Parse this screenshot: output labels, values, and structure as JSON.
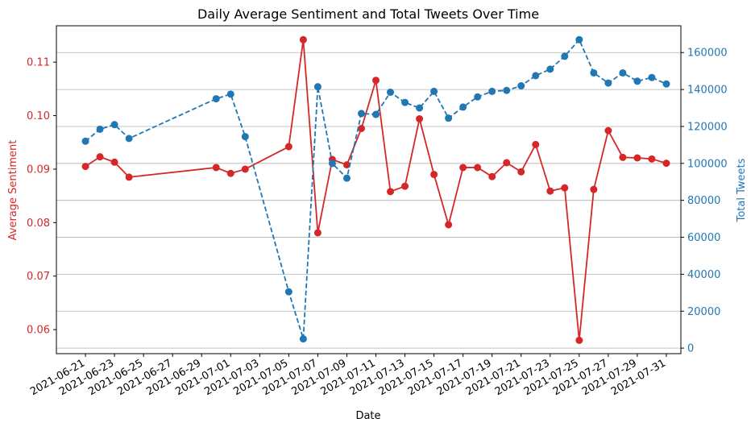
{
  "chart_data": {
    "type": "line",
    "title": "Daily Average Sentiment and Total Tweets Over Time",
    "xlabel": "Date",
    "ylabel_left": "Average Sentiment",
    "ylabel_right": "Total Tweets",
    "colors": {
      "sentiment": "#d62728",
      "tweets": "#1f77b4",
      "grid": "#b0b0b0",
      "axis": "#000000"
    },
    "x_ticks": [
      "2021-06-21",
      "2021-06-23",
      "2021-06-25",
      "2021-06-27",
      "2021-06-29",
      "2021-07-01",
      "2021-07-03",
      "2021-07-05",
      "2021-07-07",
      "2021-07-09",
      "2021-07-11",
      "2021-07-13",
      "2021-07-15",
      "2021-07-17",
      "2021-07-19",
      "2021-07-21",
      "2021-07-23",
      "2021-07-25",
      "2021-07-27",
      "2021-07-29",
      "2021-07-31"
    ],
    "xlim": [
      "2021-06-19",
      "2021-08-01"
    ],
    "y_left_ticks": [
      0.06,
      0.07,
      0.08,
      0.09,
      0.1,
      0.11
    ],
    "y_left_tick_labels": [
      "0.06",
      "0.07",
      "0.08",
      "0.09",
      "0.10",
      "0.11"
    ],
    "ylim_left": [
      0.0555,
      0.1168
    ],
    "y_right_ticks": [
      0,
      20000,
      40000,
      60000,
      80000,
      100000,
      120000,
      140000,
      160000
    ],
    "y_right_tick_labels": [
      "0",
      "20000",
      "40000",
      "60000",
      "80000",
      "100000",
      "120000",
      "140000",
      "160000"
    ],
    "ylim_right": [
      -3000,
      174500
    ],
    "grid": "horizontal lines at right-axis ticks",
    "legend": "none",
    "series": [
      {
        "axis": "left",
        "style": "solid line with circle markers",
        "points": [
          {
            "x": "2021-06-21",
            "y": 0.0905
          },
          {
            "x": "2021-06-22",
            "y": 0.0923
          },
          {
            "x": "2021-06-23",
            "y": 0.0913
          },
          {
            "x": "2021-06-24",
            "y": 0.0885
          },
          {
            "x": "2021-06-30",
            "y": 0.0903
          },
          {
            "x": "2021-07-01",
            "y": 0.0892
          },
          {
            "x": "2021-07-02",
            "y": 0.09
          },
          {
            "x": "2021-07-05",
            "y": 0.0942
          },
          {
            "x": "2021-07-06",
            "y": 0.1142
          },
          {
            "x": "2021-07-07",
            "y": 0.0781
          },
          {
            "x": "2021-07-08",
            "y": 0.0918
          },
          {
            "x": "2021-07-09",
            "y": 0.0908
          },
          {
            "x": "2021-07-10",
            "y": 0.0976
          },
          {
            "x": "2021-07-11",
            "y": 0.1066
          },
          {
            "x": "2021-07-12",
            "y": 0.0858
          },
          {
            "x": "2021-07-13",
            "y": 0.0868
          },
          {
            "x": "2021-07-14",
            "y": 0.0994
          },
          {
            "x": "2021-07-15",
            "y": 0.089
          },
          {
            "x": "2021-07-16",
            "y": 0.0796
          },
          {
            "x": "2021-07-17",
            "y": 0.0903
          },
          {
            "x": "2021-07-18",
            "y": 0.0903
          },
          {
            "x": "2021-07-19",
            "y": 0.0886
          },
          {
            "x": "2021-07-20",
            "y": 0.0912
          },
          {
            "x": "2021-07-21",
            "y": 0.0895
          },
          {
            "x": "2021-07-22",
            "y": 0.0946
          },
          {
            "x": "2021-07-23",
            "y": 0.0859
          },
          {
            "x": "2021-07-24",
            "y": 0.0865
          },
          {
            "x": "2021-07-25",
            "y": 0.058
          },
          {
            "x": "2021-07-26",
            "y": 0.0862
          },
          {
            "x": "2021-07-27",
            "y": 0.0972
          },
          {
            "x": "2021-07-28",
            "y": 0.0922
          },
          {
            "x": "2021-07-29",
            "y": 0.0921
          },
          {
            "x": "2021-07-30",
            "y": 0.0919
          },
          {
            "x": "2021-07-31",
            "y": 0.0911
          }
        ]
      },
      {
        "axis": "right",
        "style": "dashed line with circle markers",
        "points": [
          {
            "x": "2021-06-21",
            "y": 112000
          },
          {
            "x": "2021-06-22",
            "y": 118500
          },
          {
            "x": "2021-06-23",
            "y": 121000
          },
          {
            "x": "2021-06-24",
            "y": 113500
          },
          {
            "x": "2021-06-30",
            "y": 135000
          },
          {
            "x": "2021-07-01",
            "y": 137500
          },
          {
            "x": "2021-07-02",
            "y": 114500
          },
          {
            "x": "2021-07-05",
            "y": 30500
          },
          {
            "x": "2021-07-06",
            "y": 5000
          },
          {
            "x": "2021-07-07",
            "y": 141500
          },
          {
            "x": "2021-07-08",
            "y": 100000
          },
          {
            "x": "2021-07-09",
            "y": 92000
          },
          {
            "x": "2021-07-10",
            "y": 127000
          },
          {
            "x": "2021-07-11",
            "y": 126500
          },
          {
            "x": "2021-07-12",
            "y": 138500
          },
          {
            "x": "2021-07-13",
            "y": 133000
          },
          {
            "x": "2021-07-14",
            "y": 130000
          },
          {
            "x": "2021-07-15",
            "y": 139000
          },
          {
            "x": "2021-07-16",
            "y": 124500
          },
          {
            "x": "2021-07-17",
            "y": 130500
          },
          {
            "x": "2021-07-18",
            "y": 136000
          },
          {
            "x": "2021-07-19",
            "y": 139000
          },
          {
            "x": "2021-07-20",
            "y": 139500
          },
          {
            "x": "2021-07-21",
            "y": 142000
          },
          {
            "x": "2021-07-22",
            "y": 147500
          },
          {
            "x": "2021-07-23",
            "y": 151000
          },
          {
            "x": "2021-07-24",
            "y": 158000
          },
          {
            "x": "2021-07-25",
            "y": 167000
          },
          {
            "x": "2021-07-26",
            "y": 149000
          },
          {
            "x": "2021-07-27",
            "y": 143500
          },
          {
            "x": "2021-07-28",
            "y": 149000
          },
          {
            "x": "2021-07-29",
            "y": 144500
          },
          {
            "x": "2021-07-30",
            "y": 146500
          },
          {
            "x": "2021-07-31",
            "y": 143000
          }
        ]
      }
    ]
  }
}
